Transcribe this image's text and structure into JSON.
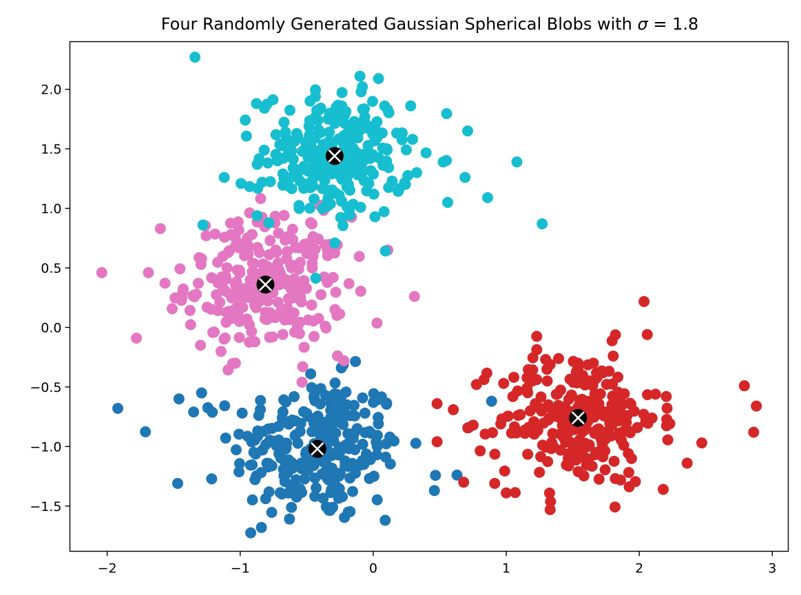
{
  "chart_data": {
    "type": "scatter",
    "title": "Four Randomly Generated Gaussian Spherical Blobs with σ = 1.8",
    "title_parts": {
      "text": "Four Randomly Generated Gaussian Spherical Blobs with ",
      "symbol": "σ",
      "equals": " = 1.8"
    },
    "xlabel": "",
    "ylabel": "",
    "xlim": [
      -2.28,
      3.12
    ],
    "ylim": [
      -1.88,
      2.4
    ],
    "xticks": [
      -2,
      -1,
      0,
      1,
      2,
      3
    ],
    "xtick_labels": [
      "−2",
      "−1",
      "0",
      "1",
      "2",
      "3"
    ],
    "yticks": [
      -1.5,
      -1.0,
      -0.5,
      0.0,
      0.5,
      1.0,
      1.5,
      2.0
    ],
    "ytick_labels": [
      "−1.5",
      "−1.0",
      "−0.5",
      "0.0",
      "0.5",
      "1.0",
      "1.5",
      "2.0"
    ],
    "grid": false,
    "legend": false,
    "point_count_per_series": 250,
    "series": [
      {
        "color": "#1f77b4",
        "center": [
          -0.42,
          -1.02
        ],
        "spread": 0.32,
        "outliers": [
          [
            -1.92,
            -0.68
          ],
          [
            -1.47,
            -1.31
          ],
          [
            -1.46,
            -0.6
          ],
          [
            -1.29,
            -0.55
          ],
          [
            -1.35,
            -0.71
          ],
          [
            -0.84,
            -1.68
          ],
          [
            -0.47,
            -0.39
          ],
          [
            -0.24,
            -0.34
          ],
          [
            0.09,
            -1.62
          ],
          [
            0.63,
            -1.24
          ],
          [
            0.46,
            -1.37
          ],
          [
            0.89,
            -0.62
          ],
          [
            -0.12,
            -0.85
          ],
          [
            0.72,
            -0.84
          ]
        ]
      },
      {
        "color": "#17becf",
        "center": [
          -0.29,
          1.44
        ],
        "spread": 0.28,
        "outliers": [
          [
            -1.34,
            2.27
          ],
          [
            -1.28,
            0.86
          ],
          [
            1.08,
            1.39
          ],
          [
            1.27,
            0.87
          ],
          [
            0.86,
            1.09
          ],
          [
            0.04,
            2.09
          ],
          [
            -0.1,
            2.11
          ],
          [
            -1.12,
            1.26
          ],
          [
            0.56,
            1.05
          ],
          [
            0.71,
            1.65
          ],
          [
            0.69,
            1.26
          ]
        ]
      },
      {
        "color": "#e377c2",
        "center": [
          -0.81,
          0.36
        ],
        "spread": 0.3,
        "outliers": [
          [
            -2.04,
            0.46
          ],
          [
            -1.78,
            -0.09
          ],
          [
            -1.69,
            0.46
          ],
          [
            0.31,
            0.26
          ],
          [
            -0.59,
            -0.04
          ],
          [
            -0.22,
            -0.28
          ],
          [
            -0.53,
            -0.33
          ],
          [
            -0.47,
            0.88
          ],
          [
            -0.67,
            0.94
          ],
          [
            -1.6,
            0.83
          ],
          [
            0.11,
            0.65
          ]
        ]
      },
      {
        "color": "#d62728",
        "center": [
          1.54,
          -0.76
        ],
        "spread": 0.3,
        "outliers": [
          [
            2.79,
            -0.49
          ],
          [
            2.88,
            -0.66
          ],
          [
            2.86,
            -0.88
          ],
          [
            2.36,
            -1.14
          ],
          [
            2.18,
            -1.36
          ],
          [
            2.06,
            -0.06
          ],
          [
            1.33,
            -1.53
          ],
          [
            0.68,
            -1.3
          ],
          [
            0.48,
            -0.96
          ],
          [
            0.48,
            -0.64
          ],
          [
            1.0,
            -1.39
          ],
          [
            2.47,
            -0.97
          ]
        ]
      }
    ],
    "centers": [
      [
        -0.42,
        -1.02
      ],
      [
        -0.29,
        1.44
      ],
      [
        -0.81,
        0.36
      ],
      [
        1.54,
        -0.76
      ]
    ],
    "center_marker": {
      "fill": "#000000",
      "cross": "#ffffff"
    }
  }
}
